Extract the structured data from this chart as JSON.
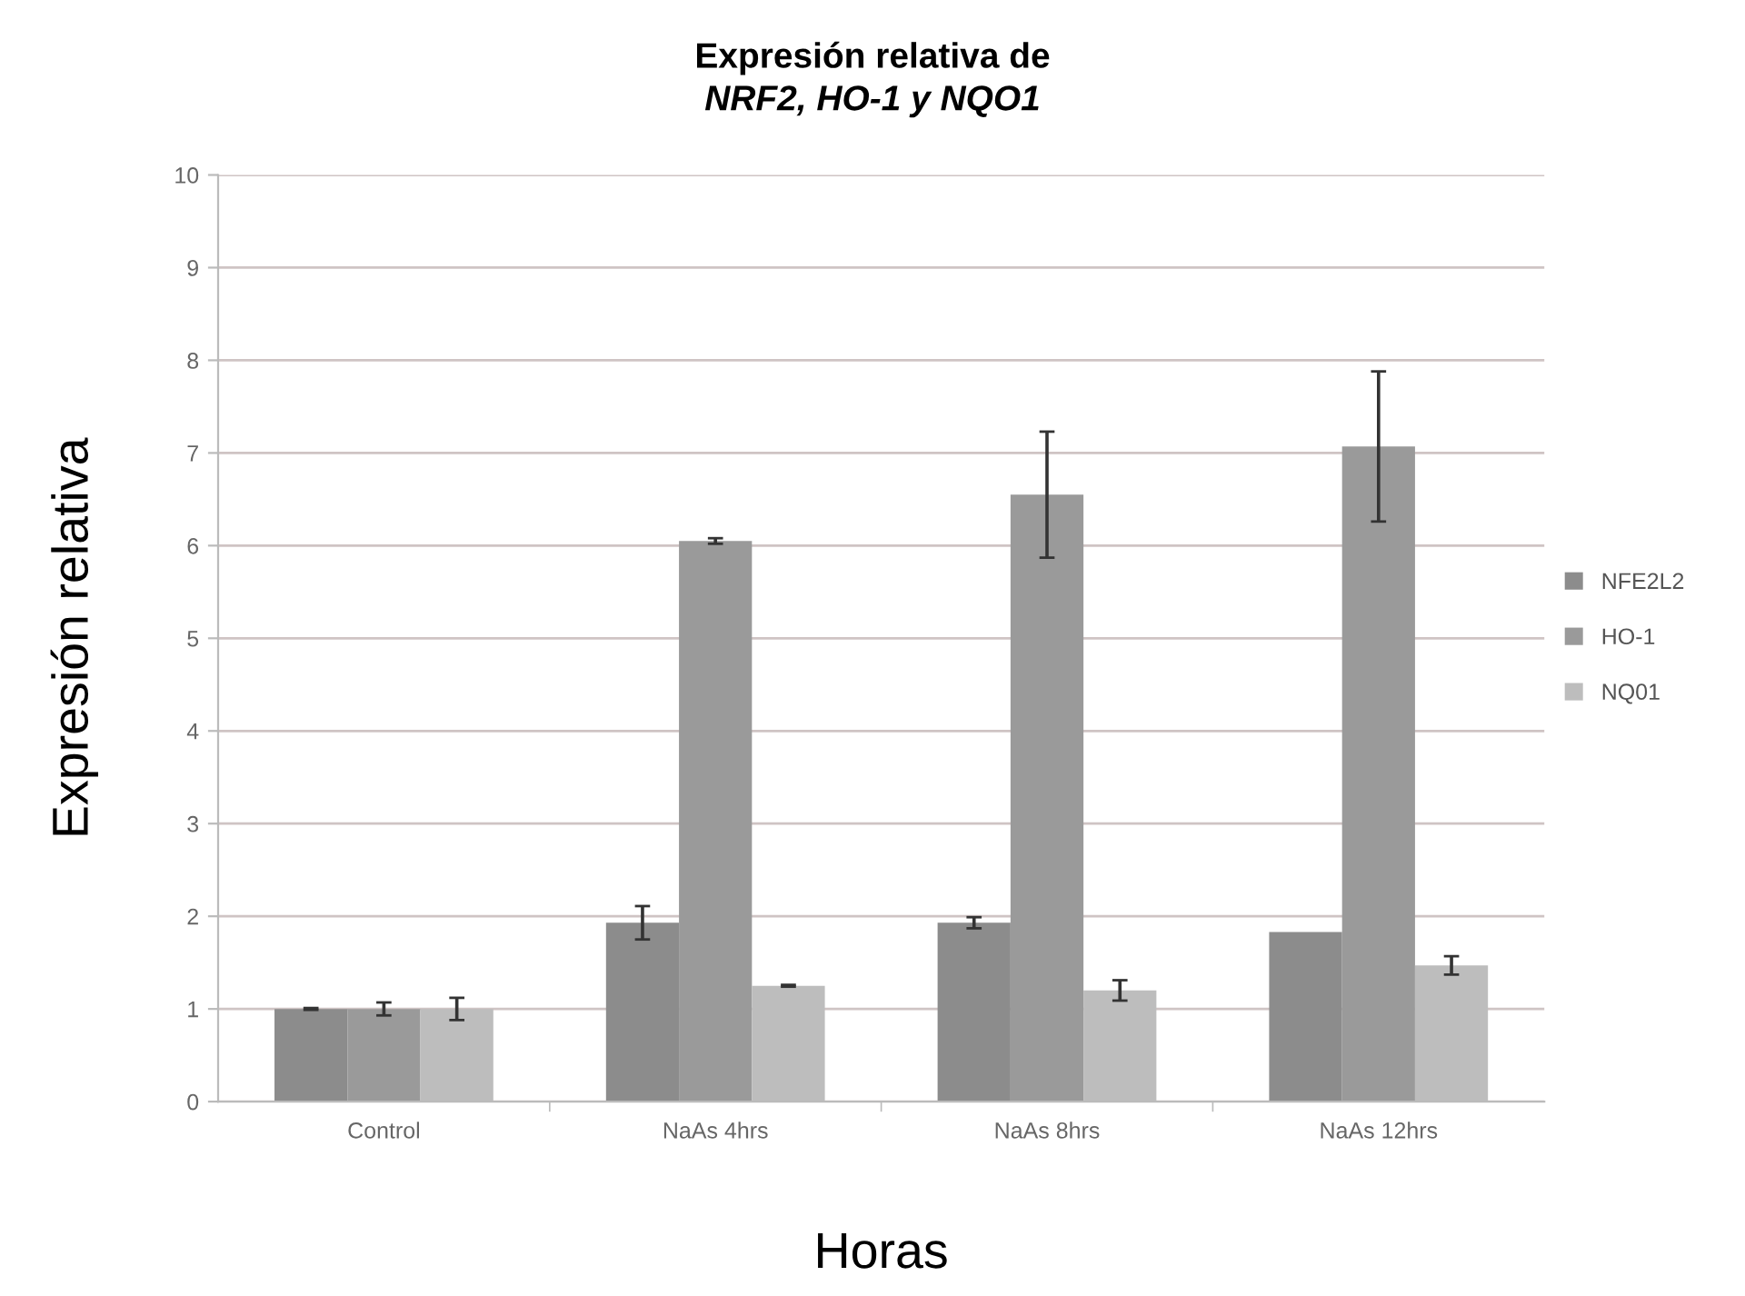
{
  "chart_data": {
    "type": "bar",
    "title": "Expresión relativa de\nNRF2, HO-1 y NQO1",
    "xlabel": "Horas",
    "ylabel": "Expresión relativa",
    "categories": [
      "Control",
      "NaAs 4hrs",
      "NaAs 8hrs",
      "NaAs 12hrs"
    ],
    "series": [
      {
        "name": "NFE2L2",
        "color": "#8c8c8c",
        "values": [
          1.0,
          1.93,
          1.93,
          1.83
        ],
        "errors": [
          0.01,
          0.18,
          0.06,
          null
        ]
      },
      {
        "name": "HO-1",
        "color": "#9a9a9a",
        "values": [
          1.0,
          6.05,
          6.55,
          7.07
        ],
        "errors": [
          0.07,
          0.03,
          0.68,
          0.81
        ]
      },
      {
        "name": "NQ01",
        "color": "#bdbdbd",
        "values": [
          1.0,
          1.25,
          1.2,
          1.47
        ],
        "errors": [
          0.12,
          0.01,
          0.11,
          0.1
        ]
      }
    ],
    "ylim": [
      0,
      10
    ],
    "yticks": [
      0,
      1,
      2,
      3,
      4,
      5,
      6,
      7,
      8,
      9,
      10
    ],
    "grid": "y",
    "legend": "right"
  }
}
